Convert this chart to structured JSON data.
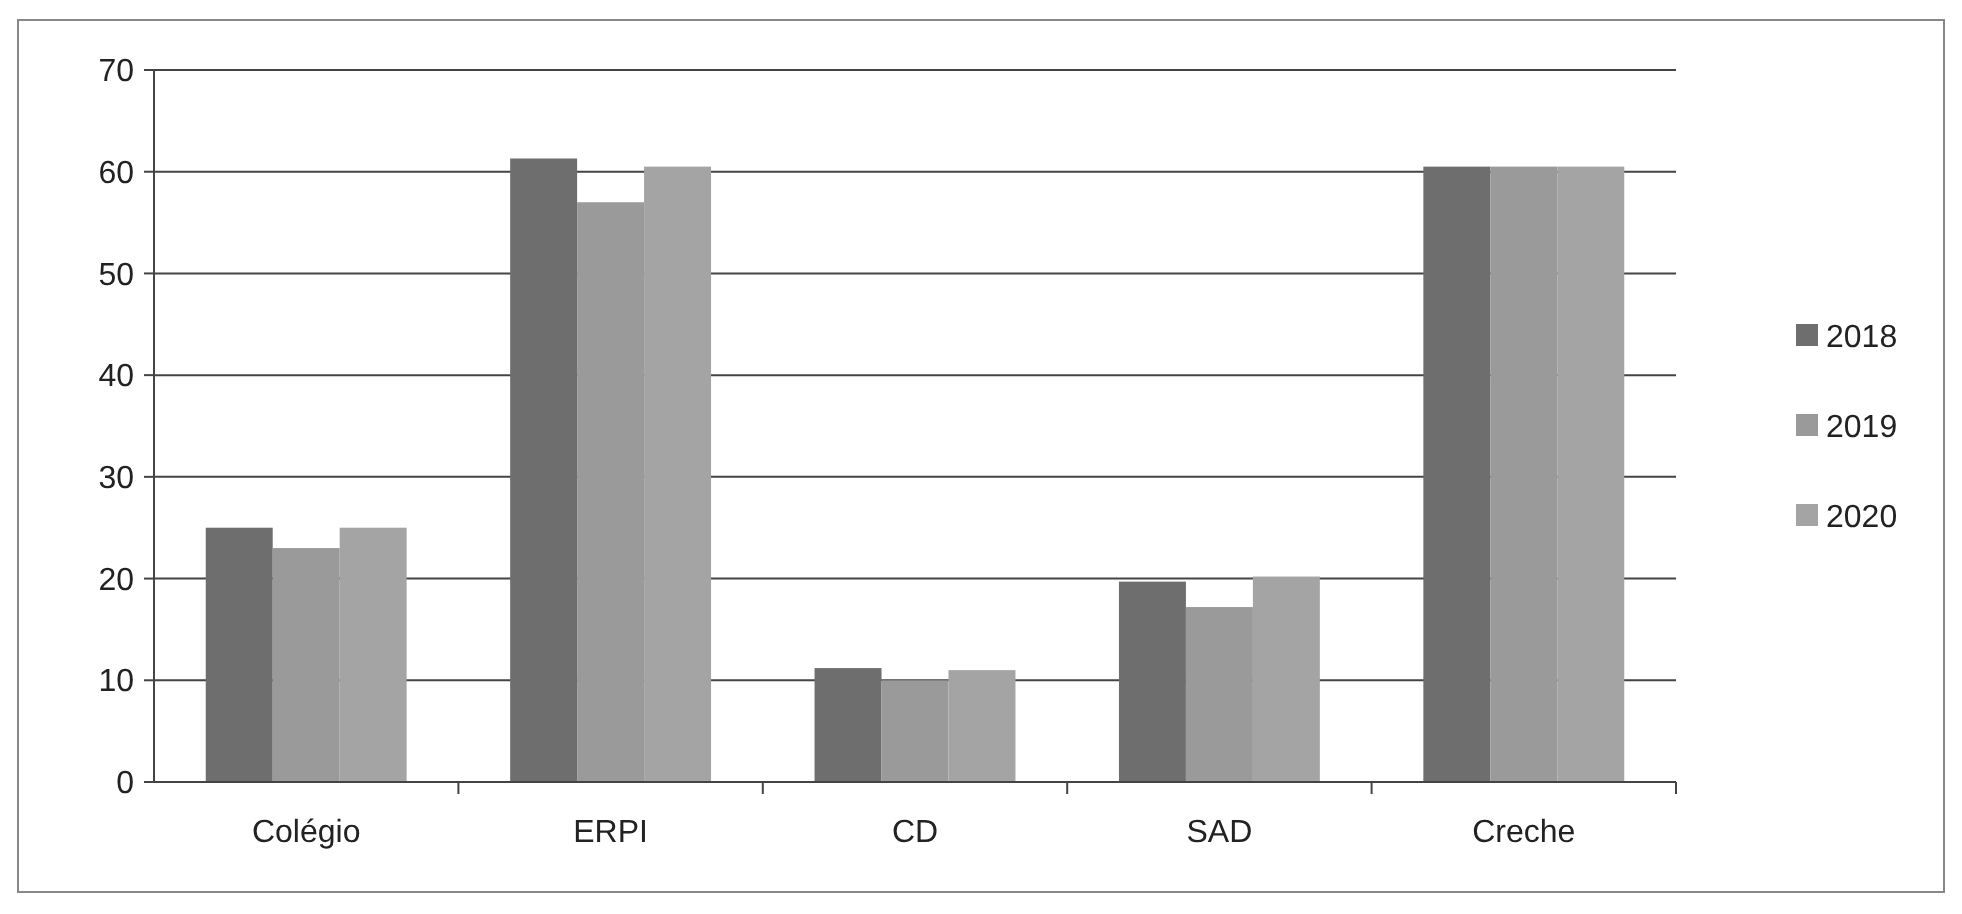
{
  "chart_data": {
    "type": "bar",
    "categories": [
      "Colégio",
      "ERPI",
      "CD",
      "SAD",
      "Creche"
    ],
    "series": [
      {
        "name": "2018",
        "color": "#6e6e6e",
        "values": [
          25,
          61.3,
          11.2,
          19.7,
          60.5
        ]
      },
      {
        "name": "2019",
        "color": "#9a9a9a",
        "values": [
          23,
          57,
          10,
          17.2,
          60.5
        ]
      },
      {
        "name": "2020",
        "color": "#a4a4a4",
        "values": [
          25,
          60.5,
          11,
          20.2,
          60.5
        ]
      }
    ],
    "ylim": [
      0,
      70
    ],
    "yticks": [
      0,
      10,
      20,
      30,
      40,
      50,
      60,
      70
    ],
    "grid": "y",
    "legend": "right"
  }
}
